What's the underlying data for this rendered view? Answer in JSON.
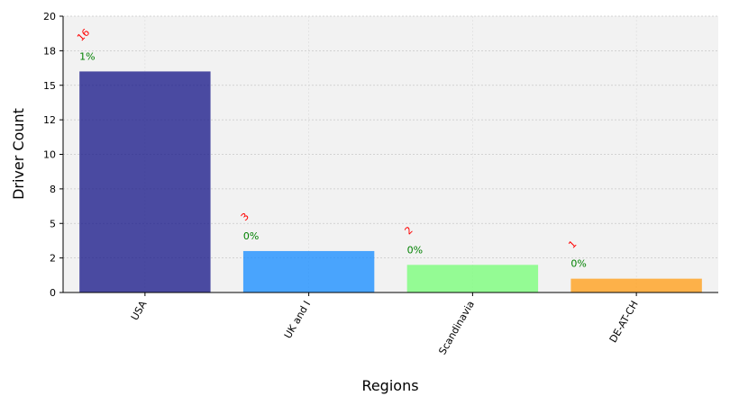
{
  "chart_data": {
    "type": "bar",
    "title": "",
    "xlabel": "Regions",
    "ylabel": "Driver Count",
    "categories": [
      "USA",
      "UK and I",
      "Scandinavia",
      "DE-AT-CH"
    ],
    "values": [
      16,
      3,
      2,
      1
    ],
    "count_labels": [
      "16",
      "3",
      "2",
      "1"
    ],
    "percent_labels": [
      "1%",
      "0%",
      "0%",
      "0%"
    ],
    "bar_colors": [
      "#1f1f8c",
      "#1e90ff",
      "#7cfc7c",
      "#ffa01e"
    ],
    "ylim": [
      0,
      20
    ],
    "y_tick_values": [
      0,
      2.5,
      5,
      7.5,
      10,
      12.5,
      15,
      17.5,
      20
    ],
    "y_tick_labels": [
      "0",
      "2",
      "5",
      "8",
      "10",
      "12",
      "15",
      "18",
      "20"
    ],
    "grid": true,
    "plot_background": "#f2f2f2"
  }
}
